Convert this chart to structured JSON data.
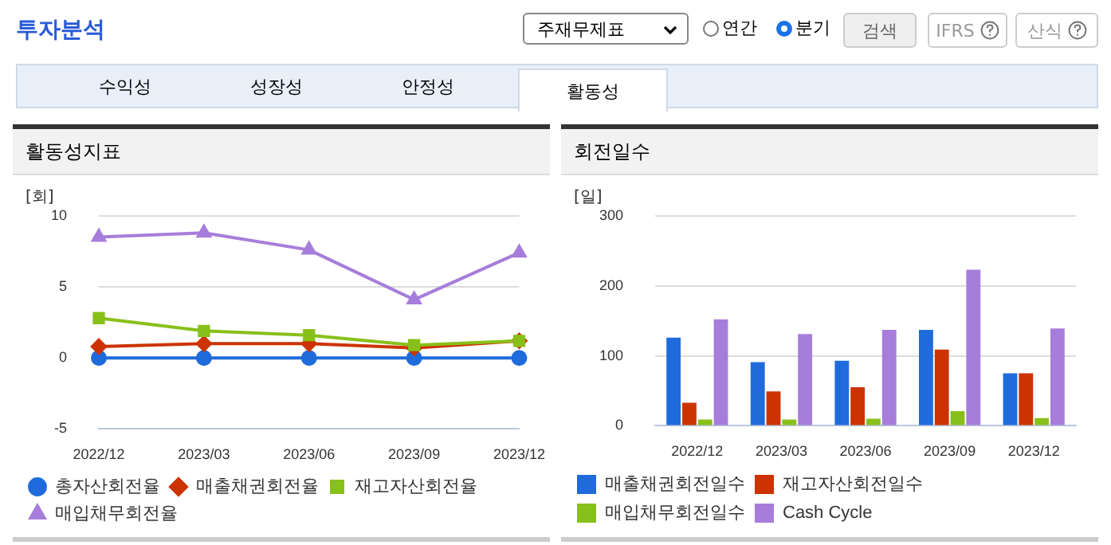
{
  "chart_data": [
    {
      "type": "line",
      "title": "활동성지표",
      "ylabel": "[회]",
      "categories": [
        "2022/12",
        "2023/03",
        "2023/06",
        "2023/09",
        "2023/12"
      ],
      "series": [
        {
          "name": "총자산회전율",
          "color": "#1f6bdc",
          "marker": "circle",
          "values": [
            0,
            0,
            0,
            0,
            0
          ]
        },
        {
          "name": "매출채권회전율",
          "color": "#cc3300",
          "marker": "diamond",
          "values": [
            0.8,
            1.0,
            1.0,
            0.7,
            1.2
          ]
        },
        {
          "name": "재고자산회전율",
          "color": "#88c01a",
          "marker": "square",
          "values": [
            2.8,
            1.9,
            1.6,
            0.9,
            1.2
          ]
        },
        {
          "name": "매입채무회전율",
          "color": "#a77ddb",
          "marker": "triangle",
          "values": [
            8.5,
            8.8,
            7.6,
            4.1,
            7.4
          ]
        }
      ],
      "ylim": [
        -5,
        10
      ],
      "yticks": [
        -5,
        0,
        5,
        10
      ],
      "grid": "y",
      "legend": "bottom",
      "annotations": [
        "투자분석",
        "주재무제표",
        "연간",
        "분기",
        "검색",
        "IFRS",
        "산식",
        "수익성",
        "성장성",
        "안정성",
        "활동성"
      ]
    },
    {
      "type": "bar",
      "title": "회전일수",
      "ylabel": "[일]",
      "categories": [
        "2022/12",
        "2023/03",
        "2023/06",
        "2023/09",
        "2023/12"
      ],
      "series": [
        {
          "name": "매출채권회전일수",
          "color": "#1f6bdc",
          "values": [
            126,
            91,
            93,
            137,
            75
          ]
        },
        {
          "name": "재고자산회전일수",
          "color": "#cc3300",
          "values": [
            33,
            49,
            55,
            109,
            75
          ]
        },
        {
          "name": "매입채무회전일수",
          "color": "#88c01a",
          "values": [
            9,
            9,
            10,
            21,
            11
          ]
        },
        {
          "name": "Cash Cycle",
          "color": "#a77ddb",
          "values": [
            152,
            131,
            137,
            223,
            139
          ]
        }
      ],
      "ylim": [
        0,
        300
      ],
      "yticks": [
        0,
        100,
        200,
        300
      ],
      "grid": "y",
      "legend": "bottom"
    }
  ]
}
